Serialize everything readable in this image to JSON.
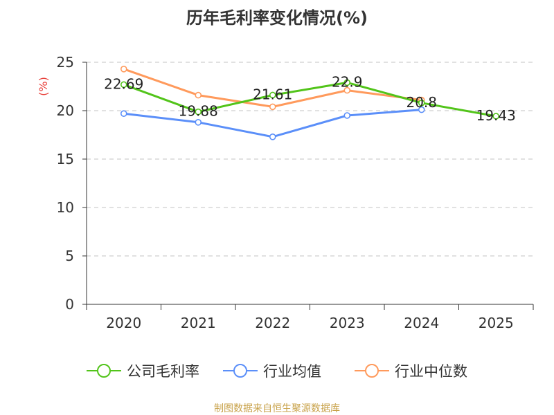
{
  "chart_data": {
    "type": "line",
    "title": "历年毛利率变化情况(%)",
    "ylabel": "(%)",
    "xlabel": "",
    "categories": [
      "2020",
      "2021",
      "2022",
      "2023",
      "2024",
      "2025"
    ],
    "ylim": [
      0,
      25
    ],
    "yticks": [
      0,
      5,
      10,
      15,
      20,
      25
    ],
    "grid": true,
    "legend_position": "bottom",
    "series": [
      {
        "name": "公司毛利率",
        "color": "#52c41a",
        "values": [
          22.69,
          19.88,
          21.61,
          22.9,
          20.8,
          19.43
        ],
        "data_labels": [
          "22.69",
          "19.88",
          "21.61",
          "22.9",
          "20.8",
          "19.43"
        ]
      },
      {
        "name": "行业均值",
        "color": "#5b8ff9",
        "values": [
          19.7,
          18.8,
          17.3,
          19.5,
          20.1,
          null
        ]
      },
      {
        "name": "行业中位数",
        "color": "#ff9a5c",
        "values": [
          24.3,
          21.6,
          20.4,
          22.1,
          21.1,
          null
        ]
      }
    ]
  },
  "colors": {
    "ylabel": "#e8413b",
    "footer": "#c8a24a"
  },
  "footer": {
    "source": "制图数据来自恒生聚源数据库"
  }
}
